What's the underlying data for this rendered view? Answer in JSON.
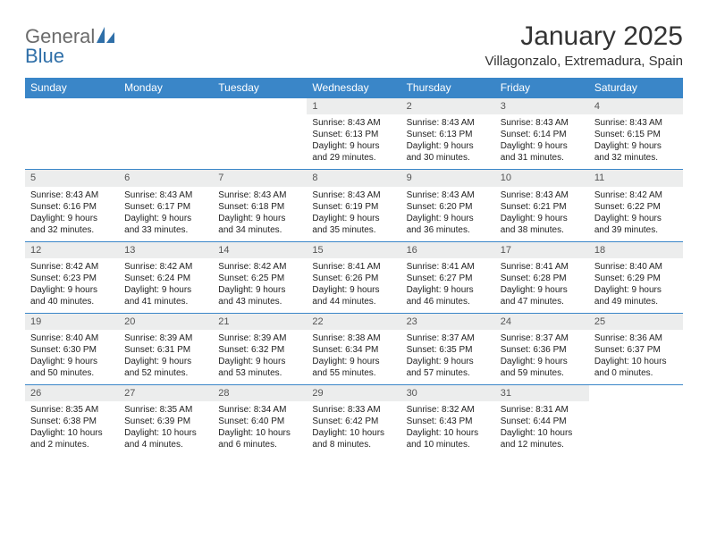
{
  "brand": {
    "general": "General",
    "blue": "Blue"
  },
  "title": "January 2025",
  "location": "Villagonzalo, Extremadura, Spain",
  "colors": {
    "header_bg": "#3a86c8",
    "header_fg": "#ffffff",
    "daynum_bg": "#eceded",
    "rule": "#3a86c8",
    "logo_gray": "#6b6b6b",
    "logo_blue": "#2f6fa8",
    "text": "#222222"
  },
  "weekdays": [
    "Sunday",
    "Monday",
    "Tuesday",
    "Wednesday",
    "Thursday",
    "Friday",
    "Saturday"
  ],
  "labels": {
    "sunrise": "Sunrise:",
    "sunset": "Sunset:",
    "daylight": "Daylight:"
  },
  "weeks": [
    [
      null,
      null,
      null,
      {
        "n": "1",
        "sr": "8:43 AM",
        "ss": "6:13 PM",
        "dl": "9 hours and 29 minutes."
      },
      {
        "n": "2",
        "sr": "8:43 AM",
        "ss": "6:13 PM",
        "dl": "9 hours and 30 minutes."
      },
      {
        "n": "3",
        "sr": "8:43 AM",
        "ss": "6:14 PM",
        "dl": "9 hours and 31 minutes."
      },
      {
        "n": "4",
        "sr": "8:43 AM",
        "ss": "6:15 PM",
        "dl": "9 hours and 32 minutes."
      }
    ],
    [
      {
        "n": "5",
        "sr": "8:43 AM",
        "ss": "6:16 PM",
        "dl": "9 hours and 32 minutes."
      },
      {
        "n": "6",
        "sr": "8:43 AM",
        "ss": "6:17 PM",
        "dl": "9 hours and 33 minutes."
      },
      {
        "n": "7",
        "sr": "8:43 AM",
        "ss": "6:18 PM",
        "dl": "9 hours and 34 minutes."
      },
      {
        "n": "8",
        "sr": "8:43 AM",
        "ss": "6:19 PM",
        "dl": "9 hours and 35 minutes."
      },
      {
        "n": "9",
        "sr": "8:43 AM",
        "ss": "6:20 PM",
        "dl": "9 hours and 36 minutes."
      },
      {
        "n": "10",
        "sr": "8:43 AM",
        "ss": "6:21 PM",
        "dl": "9 hours and 38 minutes."
      },
      {
        "n": "11",
        "sr": "8:42 AM",
        "ss": "6:22 PM",
        "dl": "9 hours and 39 minutes."
      }
    ],
    [
      {
        "n": "12",
        "sr": "8:42 AM",
        "ss": "6:23 PM",
        "dl": "9 hours and 40 minutes."
      },
      {
        "n": "13",
        "sr": "8:42 AM",
        "ss": "6:24 PM",
        "dl": "9 hours and 41 minutes."
      },
      {
        "n": "14",
        "sr": "8:42 AM",
        "ss": "6:25 PM",
        "dl": "9 hours and 43 minutes."
      },
      {
        "n": "15",
        "sr": "8:41 AM",
        "ss": "6:26 PM",
        "dl": "9 hours and 44 minutes."
      },
      {
        "n": "16",
        "sr": "8:41 AM",
        "ss": "6:27 PM",
        "dl": "9 hours and 46 minutes."
      },
      {
        "n": "17",
        "sr": "8:41 AM",
        "ss": "6:28 PM",
        "dl": "9 hours and 47 minutes."
      },
      {
        "n": "18",
        "sr": "8:40 AM",
        "ss": "6:29 PM",
        "dl": "9 hours and 49 minutes."
      }
    ],
    [
      {
        "n": "19",
        "sr": "8:40 AM",
        "ss": "6:30 PM",
        "dl": "9 hours and 50 minutes."
      },
      {
        "n": "20",
        "sr": "8:39 AM",
        "ss": "6:31 PM",
        "dl": "9 hours and 52 minutes."
      },
      {
        "n": "21",
        "sr": "8:39 AM",
        "ss": "6:32 PM",
        "dl": "9 hours and 53 minutes."
      },
      {
        "n": "22",
        "sr": "8:38 AM",
        "ss": "6:34 PM",
        "dl": "9 hours and 55 minutes."
      },
      {
        "n": "23",
        "sr": "8:37 AM",
        "ss": "6:35 PM",
        "dl": "9 hours and 57 minutes."
      },
      {
        "n": "24",
        "sr": "8:37 AM",
        "ss": "6:36 PM",
        "dl": "9 hours and 59 minutes."
      },
      {
        "n": "25",
        "sr": "8:36 AM",
        "ss": "6:37 PM",
        "dl": "10 hours and 0 minutes."
      }
    ],
    [
      {
        "n": "26",
        "sr": "8:35 AM",
        "ss": "6:38 PM",
        "dl": "10 hours and 2 minutes."
      },
      {
        "n": "27",
        "sr": "8:35 AM",
        "ss": "6:39 PM",
        "dl": "10 hours and 4 minutes."
      },
      {
        "n": "28",
        "sr": "8:34 AM",
        "ss": "6:40 PM",
        "dl": "10 hours and 6 minutes."
      },
      {
        "n": "29",
        "sr": "8:33 AM",
        "ss": "6:42 PM",
        "dl": "10 hours and 8 minutes."
      },
      {
        "n": "30",
        "sr": "8:32 AM",
        "ss": "6:43 PM",
        "dl": "10 hours and 10 minutes."
      },
      {
        "n": "31",
        "sr": "8:31 AM",
        "ss": "6:44 PM",
        "dl": "10 hours and 12 minutes."
      },
      null
    ]
  ]
}
